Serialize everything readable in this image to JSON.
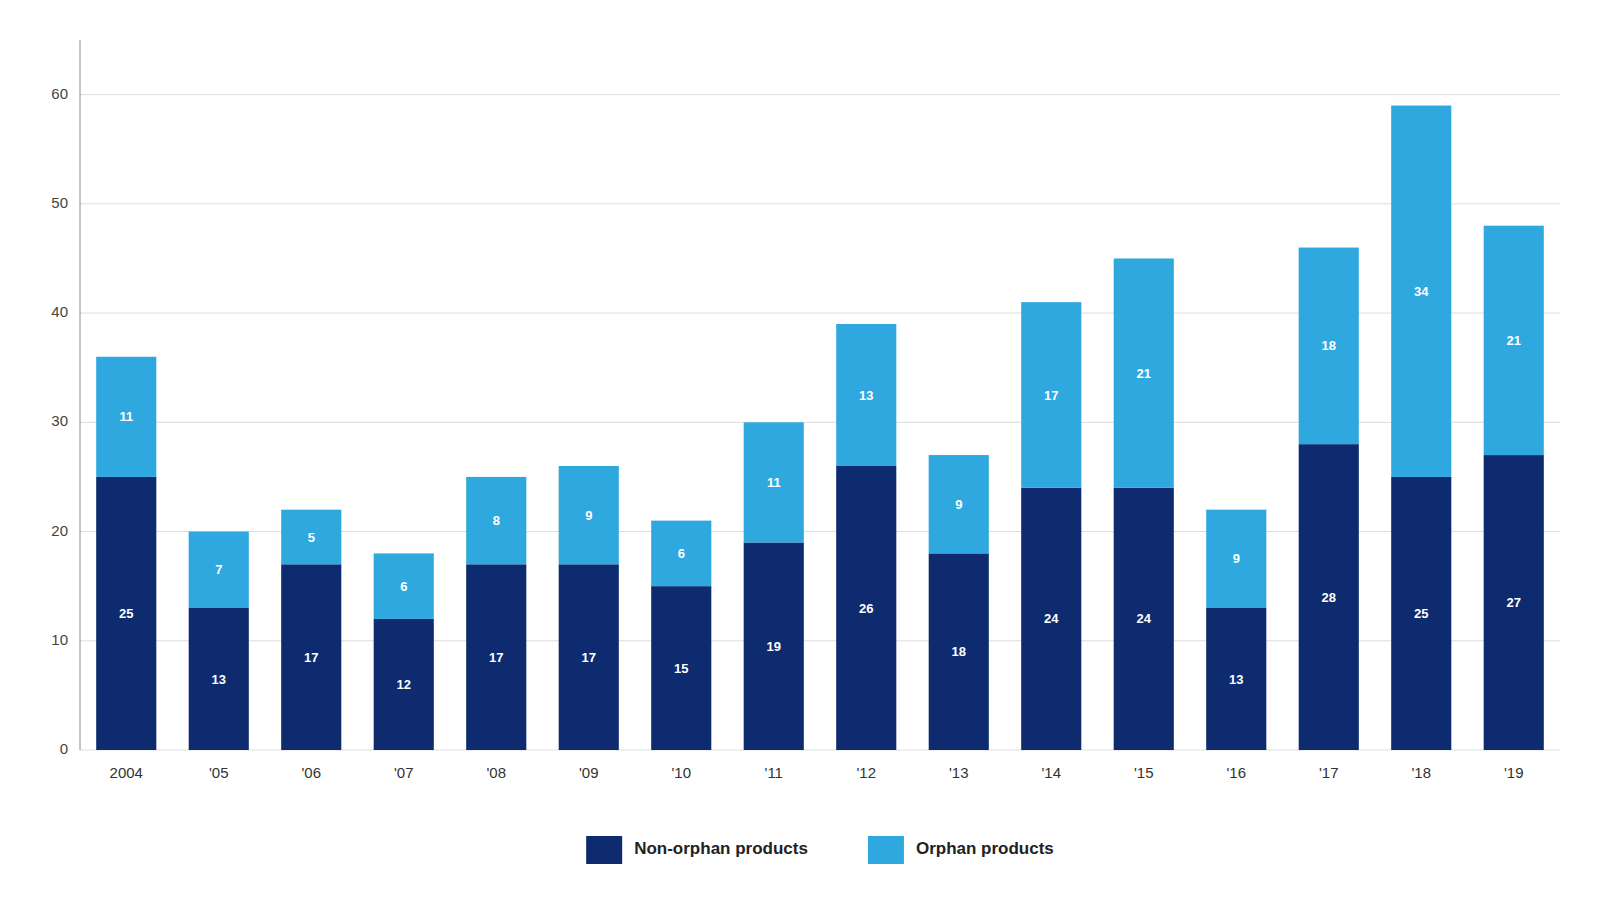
{
  "chart_data": {
    "type": "bar",
    "stacked": true,
    "data_labels": true,
    "grid": true,
    "legend": "bottom",
    "categories": [
      "2004",
      "'05",
      "'06",
      "'07",
      "'08",
      "'09",
      "'10",
      "'11",
      "'12",
      "'13",
      "'14",
      "'15",
      "'16",
      "'17",
      "'18",
      "'19"
    ],
    "series": [
      {
        "name": "Non-orphan products",
        "color": "#0d2b6e",
        "values": [
          25,
          13,
          17,
          12,
          17,
          17,
          15,
          19,
          26,
          18,
          24,
          24,
          13,
          28,
          25,
          27
        ]
      },
      {
        "name": "Orphan products",
        "color": "#2fa8e0",
        "values": [
          11,
          7,
          5,
          6,
          8,
          9,
          6,
          11,
          13,
          9,
          17,
          21,
          9,
          18,
          34,
          21
        ]
      }
    ],
    "ylim": [
      0,
      65
    ],
    "yticks": [
      0,
      10,
      20,
      30,
      40,
      50,
      60
    ]
  }
}
